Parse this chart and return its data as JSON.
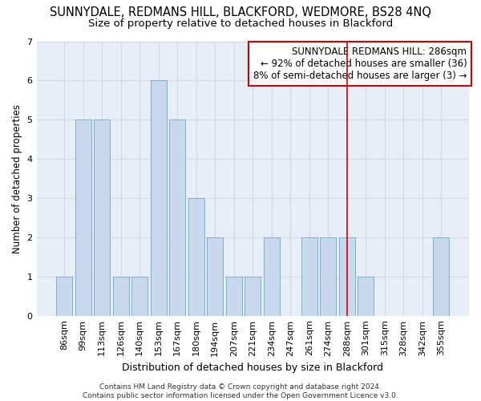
{
  "title": "SUNNYDALE, REDMANS HILL, BLACKFORD, WEDMORE, BS28 4NQ",
  "subtitle": "Size of property relative to detached houses in Blackford",
  "xlabel": "Distribution of detached houses by size in Blackford",
  "ylabel": "Number of detached properties",
  "categories": [
    "86sqm",
    "99sqm",
    "113sqm",
    "126sqm",
    "140sqm",
    "153sqm",
    "167sqm",
    "180sqm",
    "194sqm",
    "207sqm",
    "221sqm",
    "234sqm",
    "247sqm",
    "261sqm",
    "274sqm",
    "288sqm",
    "301sqm",
    "315sqm",
    "328sqm",
    "342sqm",
    "355sqm"
  ],
  "values": [
    1,
    5,
    5,
    1,
    1,
    6,
    5,
    3,
    2,
    1,
    1,
    2,
    0,
    2,
    2,
    2,
    1,
    0,
    0,
    0,
    2
  ],
  "bar_color": "#c8d9ee",
  "bar_edge_color": "#7bafd4",
  "vline_x": 15,
  "vline_color": "#cc0000",
  "annotation_text": "SUNNYDALE REDMANS HILL: 286sqm\n← 92% of detached houses are smaller (36)\n8% of semi-detached houses are larger (3) →",
  "annotation_box_color": "#cc0000",
  "ylim": [
    0,
    7
  ],
  "yticks": [
    0,
    1,
    2,
    3,
    4,
    5,
    6,
    7
  ],
  "grid_color": "#d0d8e4",
  "bg_color": "#e8eef6",
  "footer": "Contains HM Land Registry data © Crown copyright and database right 2024.\nContains public sector information licensed under the Open Government Licence v3.0.",
  "title_fontsize": 10.5,
  "subtitle_fontsize": 9.5,
  "xlabel_fontsize": 9,
  "ylabel_fontsize": 8.5,
  "tick_fontsize": 8,
  "annotation_fontsize": 8.5,
  "footer_fontsize": 6.5
}
